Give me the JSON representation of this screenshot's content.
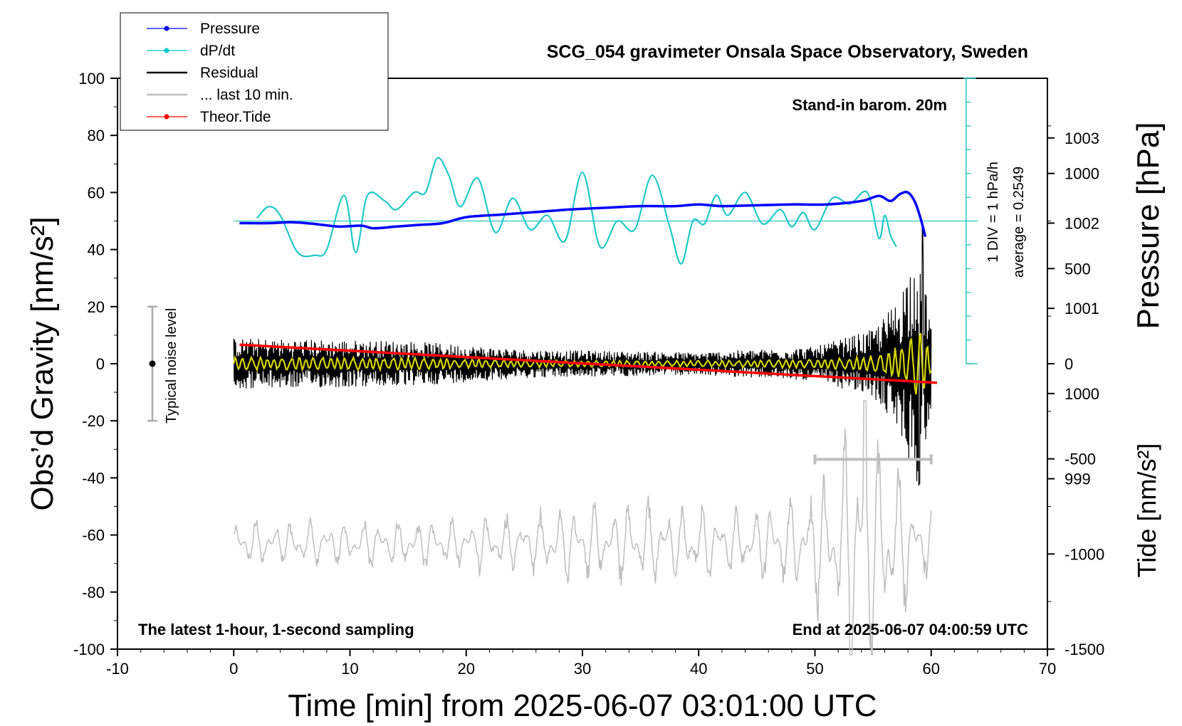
{
  "chart_data": {
    "type": "line",
    "title": "SCG_054 gravimeter Onsala Space Observatory, Sweden",
    "xlabel": "Time [min] from 2025-06-07 03:01:00 UTC",
    "ylabel_left": "Obs’d Gravity [nm/s²]",
    "ylabel_right_top": "Pressure [hPa]",
    "ylabel_right_bottom": "Tide [nm/s²]",
    "xlim": [
      -10,
      70
    ],
    "ylim": [
      -100,
      100
    ],
    "pressure_lim": [
      997.0,
      1003.7
    ],
    "tide_lim": [
      -1500,
      1500
    ],
    "x_ticks": [
      "-10",
      "0",
      "10",
      "20",
      "30",
      "40",
      "50",
      "60",
      "70"
    ],
    "y_ticks": [
      "-100",
      "-80",
      "-60",
      "-40",
      "-20",
      "0",
      "20",
      "40",
      "60",
      "80",
      "100"
    ],
    "pressure_ticks": [
      "999",
      "1000",
      "1001",
      "1002",
      "1003"
    ],
    "tide_ticks": [
      "-1500",
      "-1000",
      "-500",
      "0",
      "500",
      "1000"
    ],
    "annotations": {
      "barometer": "Stand-in barom. 20m",
      "div_label": "1 DIV = 1 hPa/h",
      "average_label": "average = 0.2549",
      "noise_label": "Typical noise level",
      "footer_left": "The latest 1-hour, 1-second sampling",
      "footer_right": "End at 2025-06-07 04:00:59 UTC"
    },
    "legend": [
      {
        "name": "Pressure",
        "color": "#0000ff",
        "marker": true
      },
      {
        "name": "dP/dt",
        "color": "#00c8c8",
        "marker": true
      },
      {
        "name": "Residual",
        "color": "#000000",
        "marker": false
      },
      {
        "name": "... last 10 min.",
        "color": "#bebebe",
        "marker": false
      },
      {
        "name": "Theor.Tide",
        "color": "#ff0000",
        "marker": true
      }
    ],
    "series": [
      {
        "name": "Pressure",
        "color": "#0000ff",
        "axis": "pressure",
        "x": [
          0.5,
          3,
          5,
          7,
          9,
          11,
          12,
          14,
          16,
          18,
          20,
          23,
          26,
          29,
          32,
          35,
          38,
          40,
          42,
          45,
          48,
          51,
          54,
          55.5,
          56.5,
          57.3,
          58,
          58.6,
          59.1,
          59.5
        ],
        "y": [
          1002.0,
          1002.0,
          1002.01,
          1001.99,
          1001.96,
          1001.97,
          1001.94,
          1001.96,
          1001.98,
          1002.0,
          1002.07,
          1002.1,
          1002.13,
          1002.16,
          1002.18,
          1002.2,
          1002.2,
          1002.22,
          1002.2,
          1002.21,
          1002.22,
          1002.22,
          1002.26,
          1002.32,
          1002.26,
          1002.34,
          1002.36,
          1002.25,
          1002.05,
          1001.84
        ]
      },
      {
        "name": "dP/dt",
        "color": "#00c8c8",
        "axis": "left",
        "x": [
          2,
          3,
          4,
          5.5,
          7,
          8,
          9.5,
          10.5,
          11.5,
          13,
          14,
          15.5,
          16.5,
          17.5,
          18.5,
          19.5,
          21,
          22.5,
          24,
          25.5,
          27,
          28.5,
          30,
          31.5,
          33,
          34.5,
          36,
          37.5,
          38.5,
          39.5,
          40.5,
          41.5,
          42.5,
          44,
          45.5,
          47,
          48,
          49,
          50,
          51.5,
          53,
          54.5,
          55.5,
          56,
          56.5,
          57
        ],
        "y": [
          51,
          55,
          52,
          39,
          38,
          40,
          59,
          39,
          59,
          57,
          54,
          60,
          60,
          72,
          66,
          55,
          65,
          46,
          58,
          47,
          52,
          43,
          67,
          41,
          50,
          47,
          66,
          48,
          35,
          50,
          49,
          59,
          52,
          60,
          49,
          54,
          48,
          53,
          47,
          58,
          56,
          60,
          44,
          52,
          45,
          41
        ]
      },
      {
        "name": "Residual",
        "color": "#000000",
        "axis": "left",
        "x_start": 0,
        "x_end": 60,
        "amplitude_by_time": [
          [
            0,
            9
          ],
          [
            15,
            8
          ],
          [
            25,
            5
          ],
          [
            40,
            4
          ],
          [
            50,
            6
          ],
          [
            55,
            12
          ],
          [
            57,
            22
          ],
          [
            59,
            45
          ],
          [
            60,
            15
          ]
        ],
        "extremes": {
          "max": 48,
          "min": -42
        }
      },
      {
        "name": "... last 10 min.",
        "color": "#bebebe",
        "axis": "left",
        "x_start": 0,
        "x_end": 60,
        "baseline": -63,
        "amplitude_by_time": [
          [
            0,
            7
          ],
          [
            20,
            8
          ],
          [
            34,
            14
          ],
          [
            44,
            10
          ],
          [
            50,
            20
          ],
          [
            54,
            45
          ],
          [
            58,
            20
          ],
          [
            60,
            10
          ]
        ],
        "extremes": {
          "max": -13,
          "min": -110
        }
      },
      {
        "name": "Theor.Tide",
        "color": "#ff0000",
        "axis": "tide",
        "x": [
          0.5,
          60.5
        ],
        "y": [
          100,
          -100
        ]
      }
    ],
    "noise_bar": {
      "x": -7,
      "y_min": -20,
      "y_max": 20,
      "center": 0
    },
    "window_bar": {
      "x_from": 50,
      "x_to": 60,
      "y": -33.5
    },
    "grid": false,
    "legend_placement": "top-left"
  }
}
